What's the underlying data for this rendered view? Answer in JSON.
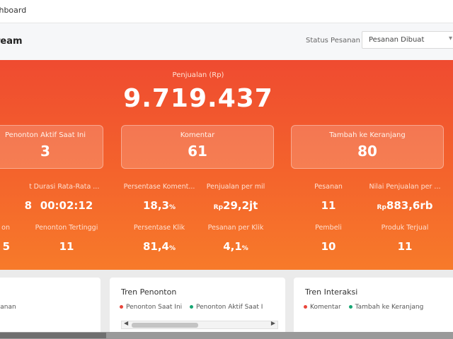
{
  "topbar": {
    "title": "ashboard"
  },
  "header": {
    "title": "ream",
    "status_label": "Status Pesanan",
    "status_value": "Pesanan Dibuat"
  },
  "hero": {
    "sales_label": "Penjualan (Rp)",
    "sales_value": "9.719.437",
    "cards": [
      {
        "label": "Penonton Aktif Saat Ini",
        "value": "3"
      },
      {
        "label": "Komentar",
        "value": "61"
      },
      {
        "label": "Tambah ke Keranjang",
        "value": "80"
      }
    ],
    "metrics_row1": [
      {
        "label": "t",
        "value": "8"
      },
      {
        "label": "Durasi Rata-Rata ...",
        "value": "00:02:12"
      },
      {
        "label": "Persentase Koment...",
        "value": "18,3",
        "unit": "%"
      },
      {
        "label": "Penjualan per mil",
        "prefix": "Rp",
        "value": "29,2jt"
      },
      {
        "label": "Pesanan",
        "value": "11"
      },
      {
        "label": "Nilai Penjualan per ...",
        "prefix": "Rp",
        "value": "883,6rb"
      }
    ],
    "metrics_row2": [
      {
        "label": "on",
        "value": "5"
      },
      {
        "label": "Penonton Tertinggi",
        "value": "11"
      },
      {
        "label": "Persentase Klik",
        "value": "81,4",
        "unit": "%"
      },
      {
        "label": "Pesanan per Klik",
        "value": "4,1",
        "unit": "%"
      },
      {
        "label": "Pembeli",
        "value": "10"
      },
      {
        "label": "Produk Terjual",
        "value": "11"
      }
    ]
  },
  "panels": [
    {
      "legend": [
        "esanan"
      ]
    },
    {
      "title": "Tren Penonton",
      "legend": [
        "Penonton Saat Ini",
        "Penonton Aktif Saat I"
      ]
    },
    {
      "title": "Tren Interaksi",
      "legend": [
        "Komentar",
        "Tambah ke Keranjang"
      ]
    }
  ],
  "colors": {
    "hero_start": "#ef4b30",
    "hero_end": "#f77a2a",
    "legend_red": "#e9453a",
    "legend_green": "#17a673"
  },
  "icons": {
    "select": "chevron-down-icon",
    "scroll_left": "arrow-left-icon",
    "scroll_right": "arrow-right-icon"
  }
}
